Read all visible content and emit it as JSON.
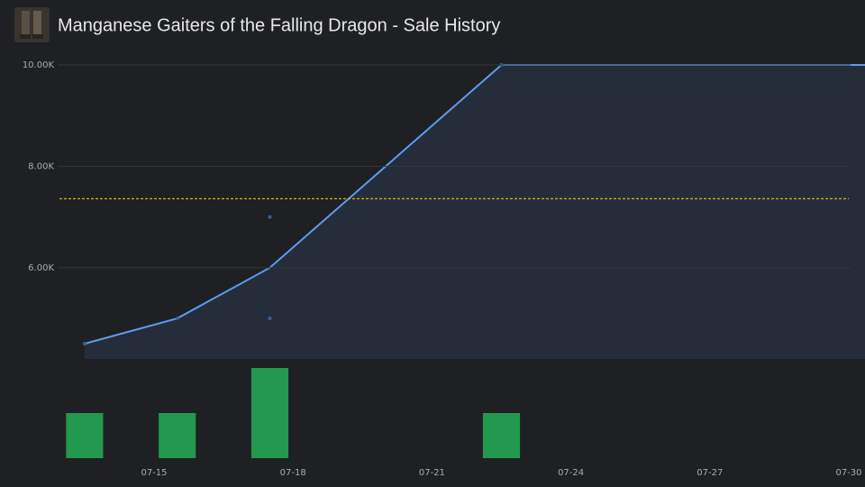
{
  "chart_data": [
    {
      "type": "line",
      "title": "Manganese Gaiters of the Falling Dragon - Sale History",
      "x": [
        "07-13",
        "07-15",
        "07-17",
        "07-22",
        "07-30"
      ],
      "values": [
        4500,
        5000,
        6000,
        10000,
        10000
      ],
      "color": "#5b9cf0",
      "fill": "#262d3a",
      "ylim": [
        4200,
        10000
      ],
      "yticks": [
        {
          "value": 6000,
          "label": "6.00K"
        },
        {
          "value": 8000,
          "label": "8.00K"
        },
        {
          "value": 10000,
          "label": "10.00K"
        }
      ],
      "grid": true,
      "average": 7360,
      "average_color": "#d4b21f"
    },
    {
      "type": "scatter",
      "x": [
        "07-13",
        "07-15",
        "07-17",
        "07-17",
        "07-22"
      ],
      "values": [
        4500,
        5000,
        5000,
        7000,
        10000
      ],
      "color": "#3e5f95"
    },
    {
      "type": "bar",
      "x": [
        "07-13",
        "07-15",
        "07-17",
        "07-22"
      ],
      "values": [
        1,
        1,
        2,
        1
      ],
      "color": "#22994f",
      "ylim": [
        0,
        2
      ],
      "xticks": [
        "07-15",
        "07-18",
        "07-21",
        "07-24",
        "07-27",
        "07-30"
      ]
    }
  ]
}
